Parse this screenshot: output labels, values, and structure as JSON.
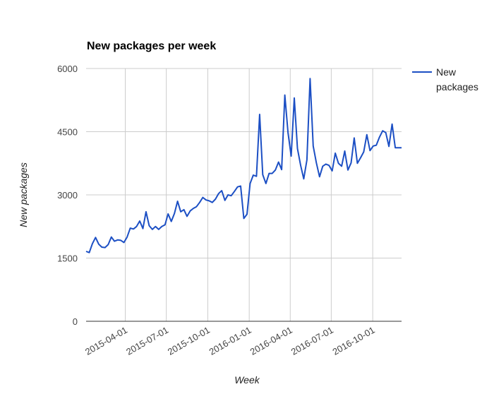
{
  "chart_data": {
    "type": "line",
    "title": "New packages per week",
    "xlabel": "Week",
    "ylabel": "New packages",
    "ylim": [
      0,
      6000
    ],
    "y_ticks": [
      "0",
      "1500",
      "3000",
      "4500",
      "6000"
    ],
    "x_ticks": [
      "2015-04-01",
      "2015-07-01",
      "2015-10-01",
      "2016-01-01",
      "2016-04-01",
      "2016-07-01",
      "2016-10-01"
    ],
    "x_range": [
      "2015-01-04",
      "2016-12-04"
    ],
    "grid": true,
    "legend": "right",
    "series": [
      {
        "name": "New packages",
        "color": "#1c4fc4",
        "x": [
          "2015-01-04",
          "2015-01-11",
          "2015-01-18",
          "2015-01-25",
          "2015-02-01",
          "2015-02-08",
          "2015-02-15",
          "2015-02-22",
          "2015-03-01",
          "2015-03-08",
          "2015-03-15",
          "2015-03-22",
          "2015-03-29",
          "2015-04-05",
          "2015-04-12",
          "2015-04-19",
          "2015-04-26",
          "2015-05-03",
          "2015-05-10",
          "2015-05-17",
          "2015-05-24",
          "2015-05-31",
          "2015-06-07",
          "2015-06-14",
          "2015-06-21",
          "2015-06-28",
          "2015-07-05",
          "2015-07-12",
          "2015-07-19",
          "2015-07-26",
          "2015-08-02",
          "2015-08-09",
          "2015-08-16",
          "2015-08-23",
          "2015-08-30",
          "2015-09-06",
          "2015-09-13",
          "2015-09-20",
          "2015-09-27",
          "2015-10-04",
          "2015-10-11",
          "2015-10-18",
          "2015-10-25",
          "2015-11-01",
          "2015-11-08",
          "2015-11-15",
          "2015-11-22",
          "2015-11-29",
          "2015-12-06",
          "2015-12-13",
          "2015-12-20",
          "2015-12-27",
          "2016-01-03",
          "2016-01-10",
          "2016-01-17",
          "2016-01-24",
          "2016-01-31",
          "2016-02-07",
          "2016-02-14",
          "2016-02-21",
          "2016-02-28",
          "2016-03-06",
          "2016-03-13",
          "2016-03-20",
          "2016-03-27",
          "2016-04-03",
          "2016-04-10",
          "2016-04-17",
          "2016-04-24",
          "2016-05-01",
          "2016-05-08",
          "2016-05-15",
          "2016-05-22",
          "2016-05-29",
          "2016-06-05",
          "2016-06-12",
          "2016-06-19",
          "2016-06-26",
          "2016-07-03",
          "2016-07-10",
          "2016-07-17",
          "2016-07-24",
          "2016-07-31",
          "2016-08-07",
          "2016-08-14",
          "2016-08-21",
          "2016-08-28",
          "2016-09-04",
          "2016-09-11",
          "2016-09-18",
          "2016-09-25",
          "2016-10-02",
          "2016-10-09",
          "2016-10-16",
          "2016-10-23",
          "2016-10-30",
          "2016-11-06",
          "2016-11-13",
          "2016-11-20",
          "2016-11-27",
          "2016-12-04"
        ],
        "values": [
          1660,
          1630,
          1840,
          1990,
          1830,
          1760,
          1750,
          1820,
          2000,
          1900,
          1930,
          1920,
          1870,
          2000,
          2210,
          2190,
          2250,
          2380,
          2200,
          2600,
          2270,
          2180,
          2250,
          2180,
          2250,
          2290,
          2550,
          2370,
          2560,
          2850,
          2600,
          2650,
          2490,
          2620,
          2680,
          2720,
          2820,
          2940,
          2880,
          2860,
          2820,
          2900,
          3030,
          3100,
          2870,
          3000,
          2980,
          3080,
          3190,
          3210,
          2440,
          2540,
          3270,
          3470,
          3440,
          4910,
          3480,
          3270,
          3510,
          3510,
          3590,
          3780,
          3600,
          5370,
          4480,
          3920,
          5300,
          4100,
          3700,
          3380,
          3830,
          5760,
          4160,
          3760,
          3430,
          3680,
          3730,
          3700,
          3570,
          3990,
          3750,
          3680,
          4040,
          3590,
          3760,
          4350,
          3750,
          3880,
          4020,
          4430,
          4050,
          4160,
          4180,
          4370,
          4520,
          4480,
          4150,
          4680,
          4120,
          4120,
          4120
        ]
      }
    ]
  }
}
